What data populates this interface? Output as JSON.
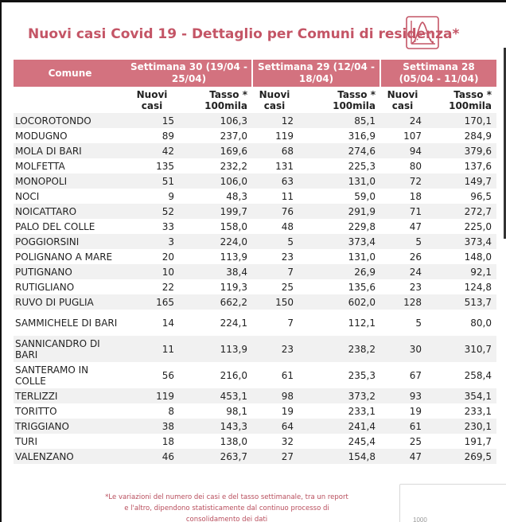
{
  "title": "Nuovi casi Covid 19 - Dettaglio per Comuni di residenza*",
  "colors": {
    "accent": "#c45566",
    "header_bg": "#d3727f",
    "row_alt": "#f1f1f1"
  },
  "icon": "epidemic-curve-icon",
  "table": {
    "header": {
      "comune": "Comune",
      "week30": "Settimana 30 (19/04 - 25/04)",
      "week29": "Settimana 29 (12/04 - 18/04)",
      "week28": "Settimana 28 (05/04 - 11/04)"
    },
    "subheader": {
      "cases": "Nuovi casi",
      "rate": "Tasso * 100mila"
    },
    "rows": [
      [
        "LOCOROTONDO",
        "15",
        "106,3",
        "12",
        "85,1",
        "24",
        "170,1"
      ],
      [
        "MODUGNO",
        "89",
        "237,0",
        "119",
        "316,9",
        "107",
        "284,9"
      ],
      [
        "MOLA DI BARI",
        "42",
        "169,6",
        "68",
        "274,6",
        "94",
        "379,6"
      ],
      [
        "MOLFETTA",
        "135",
        "232,2",
        "131",
        "225,3",
        "80",
        "137,6"
      ],
      [
        "MONOPOLI",
        "51",
        "106,0",
        "63",
        "131,0",
        "72",
        "149,7"
      ],
      [
        "NOCI",
        "9",
        "48,3",
        "11",
        "59,0",
        "18",
        "96,5"
      ],
      [
        "NOICATTARO",
        "52",
        "199,7",
        "76",
        "291,9",
        "71",
        "272,7"
      ],
      [
        "PALO DEL COLLE",
        "33",
        "158,0",
        "48",
        "229,8",
        "47",
        "225,0"
      ],
      [
        "POGGIORSINI",
        "3",
        "224,0",
        "5",
        "373,4",
        "5",
        "373,4"
      ],
      [
        "POLIGNANO A MARE",
        "20",
        "113,9",
        "23",
        "131,0",
        "26",
        "148,0"
      ],
      [
        "PUTIGNANO",
        "10",
        "38,4",
        "7",
        "26,9",
        "24",
        "92,1"
      ],
      [
        "RUTIGLIANO",
        "22",
        "119,3",
        "25",
        "135,6",
        "23",
        "124,8"
      ],
      [
        "RUVO DI PUGLIA",
        "165",
        "662,2",
        "150",
        "602,0",
        "128",
        "513,7"
      ],
      [
        "SAMMICHELE DI BARI",
        "14",
        "224,1",
        "7",
        "112,1",
        "5",
        "80,0"
      ],
      [
        "SANNICANDRO DI BARI",
        "11",
        "113,9",
        "23",
        "238,2",
        "30",
        "310,7"
      ],
      [
        "SANTERAMO IN COLLE",
        "56",
        "216,0",
        "61",
        "235,3",
        "67",
        "258,4"
      ],
      [
        "TERLIZZI",
        "119",
        "453,1",
        "98",
        "373,2",
        "93",
        "354,1"
      ],
      [
        "TORITTO",
        "8",
        "98,1",
        "19",
        "233,1",
        "19",
        "233,1"
      ],
      [
        "TRIGGIANO",
        "38",
        "143,3",
        "64",
        "241,4",
        "61",
        "230,1"
      ],
      [
        "TURI",
        "18",
        "138,0",
        "32",
        "245,4",
        "25",
        "191,7"
      ],
      [
        "VALENZANO",
        "46",
        "263,7",
        "27",
        "154,8",
        "47",
        "269,5"
      ]
    ]
  },
  "footnote": "*Le variazioni del numero dei casi e del tasso settimanale, tra un report e l'altro, dipendono statisticamente dal continuo processo di consolidamento dei dati",
  "panel_label": "1000"
}
